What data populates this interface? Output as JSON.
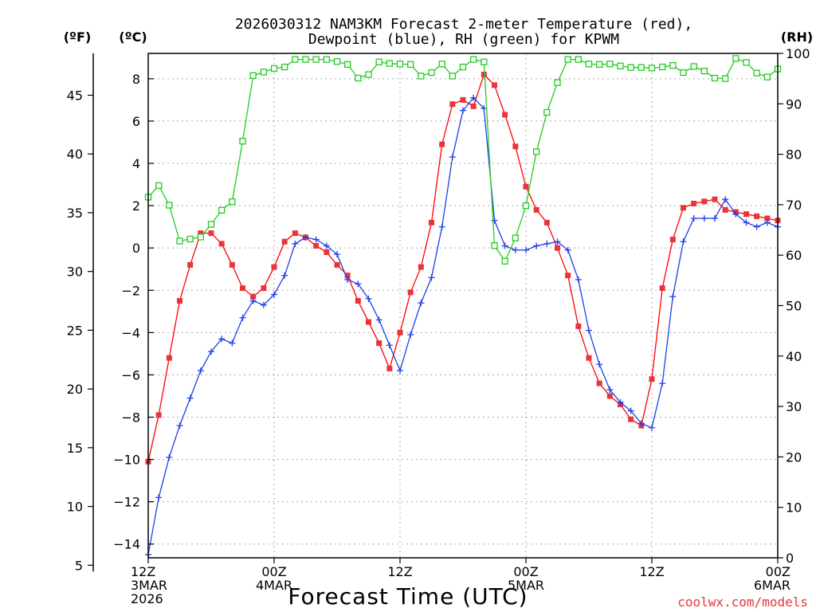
{
  "chart_data": {
    "type": "line",
    "title": "2026030312 NAM3KM Forecast 2-meter Temperature (red),",
    "subtitle": "Dewpoint (blue), RH (green) for KPWM",
    "xlabel": "Forecast Time (UTC)",
    "watermark": "coolwx.com/models",
    "units": {
      "fahrenheit": "(ºF)",
      "celsius": "(ºC)",
      "rh": "(RH)"
    },
    "x_range_hours": [
      0,
      60
    ],
    "x_ticks": [
      {
        "hour": 0,
        "lines": [
          "12Z",
          "3MAR",
          "2026"
        ]
      },
      {
        "hour": 12,
        "lines": [
          "00Z",
          "4MAR"
        ]
      },
      {
        "hour": 24,
        "lines": [
          "12Z"
        ]
      },
      {
        "hour": 36,
        "lines": [
          "00Z",
          "5MAR"
        ]
      },
      {
        "hour": 48,
        "lines": [
          "12Z"
        ]
      },
      {
        "hour": 60,
        "lines": [
          "00Z",
          "6MAR"
        ]
      }
    ],
    "y_celsius_range": [
      -14.65,
      9.2
    ],
    "y_celsius_ticks": [
      -14,
      -12,
      -10,
      -8,
      -6,
      -4,
      -2,
      0,
      2,
      4,
      6,
      8
    ],
    "y_fahrenheit_ticks": [
      5,
      10,
      15,
      20,
      25,
      30,
      35,
      40,
      45
    ],
    "y_rh_range": [
      0,
      100
    ],
    "y_rh_ticks": [
      0,
      10,
      20,
      30,
      40,
      50,
      60,
      70,
      80,
      90,
      100
    ],
    "grid": true,
    "colors": {
      "temperature": "#ff0000",
      "temperature_marker": "#e8353a",
      "dewpoint": "#1f3fe6",
      "rh": "#22cc22",
      "watermark": "#e8353a"
    },
    "series": [
      {
        "name": "Temperature",
        "units": "C",
        "axis": "celsius",
        "hours": [
          0,
          1,
          2,
          3,
          4,
          5,
          6,
          7,
          8,
          9,
          10,
          11,
          12,
          13,
          14,
          15,
          16,
          17,
          18,
          19,
          20,
          21,
          22,
          23,
          24,
          25,
          26,
          27,
          28,
          29,
          30,
          31,
          32,
          33,
          34,
          35,
          36,
          37,
          38,
          39,
          40,
          41,
          42,
          43,
          44,
          45,
          46,
          47,
          48,
          49,
          50,
          51,
          52,
          53,
          54,
          55,
          56,
          57,
          58,
          59,
          60
        ],
        "values": [
          -10.1,
          -7.9,
          -5.2,
          -2.5,
          -0.8,
          0.7,
          0.7,
          0.2,
          -0.8,
          -1.9,
          -2.3,
          -1.9,
          -0.9,
          0.3,
          0.7,
          0.5,
          0.1,
          -0.2,
          -0.8,
          -1.3,
          -2.5,
          -3.5,
          -4.5,
          -5.7,
          -4.0,
          -2.1,
          -0.9,
          1.2,
          4.9,
          6.8,
          7.0,
          6.7,
          8.2,
          7.7,
          6.3,
          4.8,
          2.9,
          1.8,
          1.2,
          0.0,
          -1.3,
          -3.7,
          -5.2,
          -6.4,
          -7.0,
          -7.4,
          -8.1,
          -8.4,
          -6.2,
          -1.9,
          0.4,
          1.9,
          2.1,
          2.2,
          2.3,
          1.8,
          1.7,
          1.6,
          1.5,
          1.4,
          1.3
        ]
      },
      {
        "name": "Dewpoint",
        "units": "C",
        "axis": "celsius",
        "hours": [
          0,
          1,
          2,
          3,
          4,
          5,
          6,
          7,
          8,
          9,
          10,
          11,
          12,
          13,
          14,
          15,
          16,
          17,
          18,
          19,
          20,
          21,
          22,
          23,
          24,
          25,
          26,
          27,
          28,
          29,
          30,
          31,
          32,
          33,
          34,
          35,
          36,
          37,
          38,
          39,
          40,
          41,
          42,
          43,
          44,
          45,
          46,
          47,
          48,
          49,
          50,
          51,
          52,
          53,
          54,
          55,
          56,
          57,
          58,
          59,
          60
        ],
        "values": [
          -14.5,
          -11.8,
          -9.9,
          -8.4,
          -7.1,
          -5.8,
          -4.9,
          -4.3,
          -4.5,
          -3.3,
          -2.5,
          -2.7,
          -2.2,
          -1.3,
          0.2,
          0.5,
          0.4,
          0.1,
          -0.3,
          -1.5,
          -1.7,
          -2.4,
          -3.4,
          -4.6,
          -5.8,
          -4.1,
          -2.6,
          -1.4,
          1.0,
          4.3,
          6.5,
          7.1,
          6.6,
          1.3,
          0.1,
          -0.1,
          -0.1,
          0.1,
          0.2,
          0.3,
          -0.1,
          -1.5,
          -3.9,
          -5.5,
          -6.7,
          -7.3,
          -7.7,
          -8.3,
          -8.5,
          -6.4,
          -2.3,
          0.3,
          1.4,
          1.4,
          1.4,
          2.3,
          1.6,
          1.2,
          1.0,
          1.2,
          1.0
        ]
      },
      {
        "name": "RH",
        "units": "%",
        "axis": "rh",
        "hours": [
          0,
          1,
          2,
          3,
          4,
          5,
          6,
          7,
          8,
          9,
          10,
          11,
          12,
          13,
          14,
          15,
          16,
          17,
          18,
          19,
          20,
          21,
          22,
          23,
          24,
          25,
          26,
          27,
          28,
          29,
          30,
          31,
          32,
          33,
          34,
          35,
          36,
          37,
          38,
          39,
          40,
          41,
          42,
          43,
          44,
          45,
          46,
          47,
          48,
          49,
          50,
          51,
          52,
          53,
          54,
          55,
          56,
          57,
          58,
          59,
          60
        ],
        "values": [
          71.5,
          73.8,
          69.9,
          62.8,
          63.2,
          63.6,
          66.1,
          68.9,
          70.6,
          82.6,
          95.6,
          96.3,
          97.0,
          97.3,
          98.8,
          98.8,
          98.8,
          98.8,
          98.4,
          97.8,
          95.1,
          95.8,
          98.3,
          98.0,
          97.9,
          97.8,
          95.5,
          96.2,
          97.9,
          95.5,
          97.3,
          98.8,
          98.3,
          61.9,
          58.8,
          63.4,
          69.8,
          80.5,
          88.3,
          94.2,
          98.8,
          98.8,
          97.9,
          97.8,
          97.9,
          97.5,
          97.2,
          97.2,
          97.1,
          97.3,
          97.6,
          96.2,
          97.4,
          96.5,
          95.1,
          95.0,
          99.0,
          98.2,
          96.1,
          95.3,
          96.9
        ]
      }
    ]
  }
}
